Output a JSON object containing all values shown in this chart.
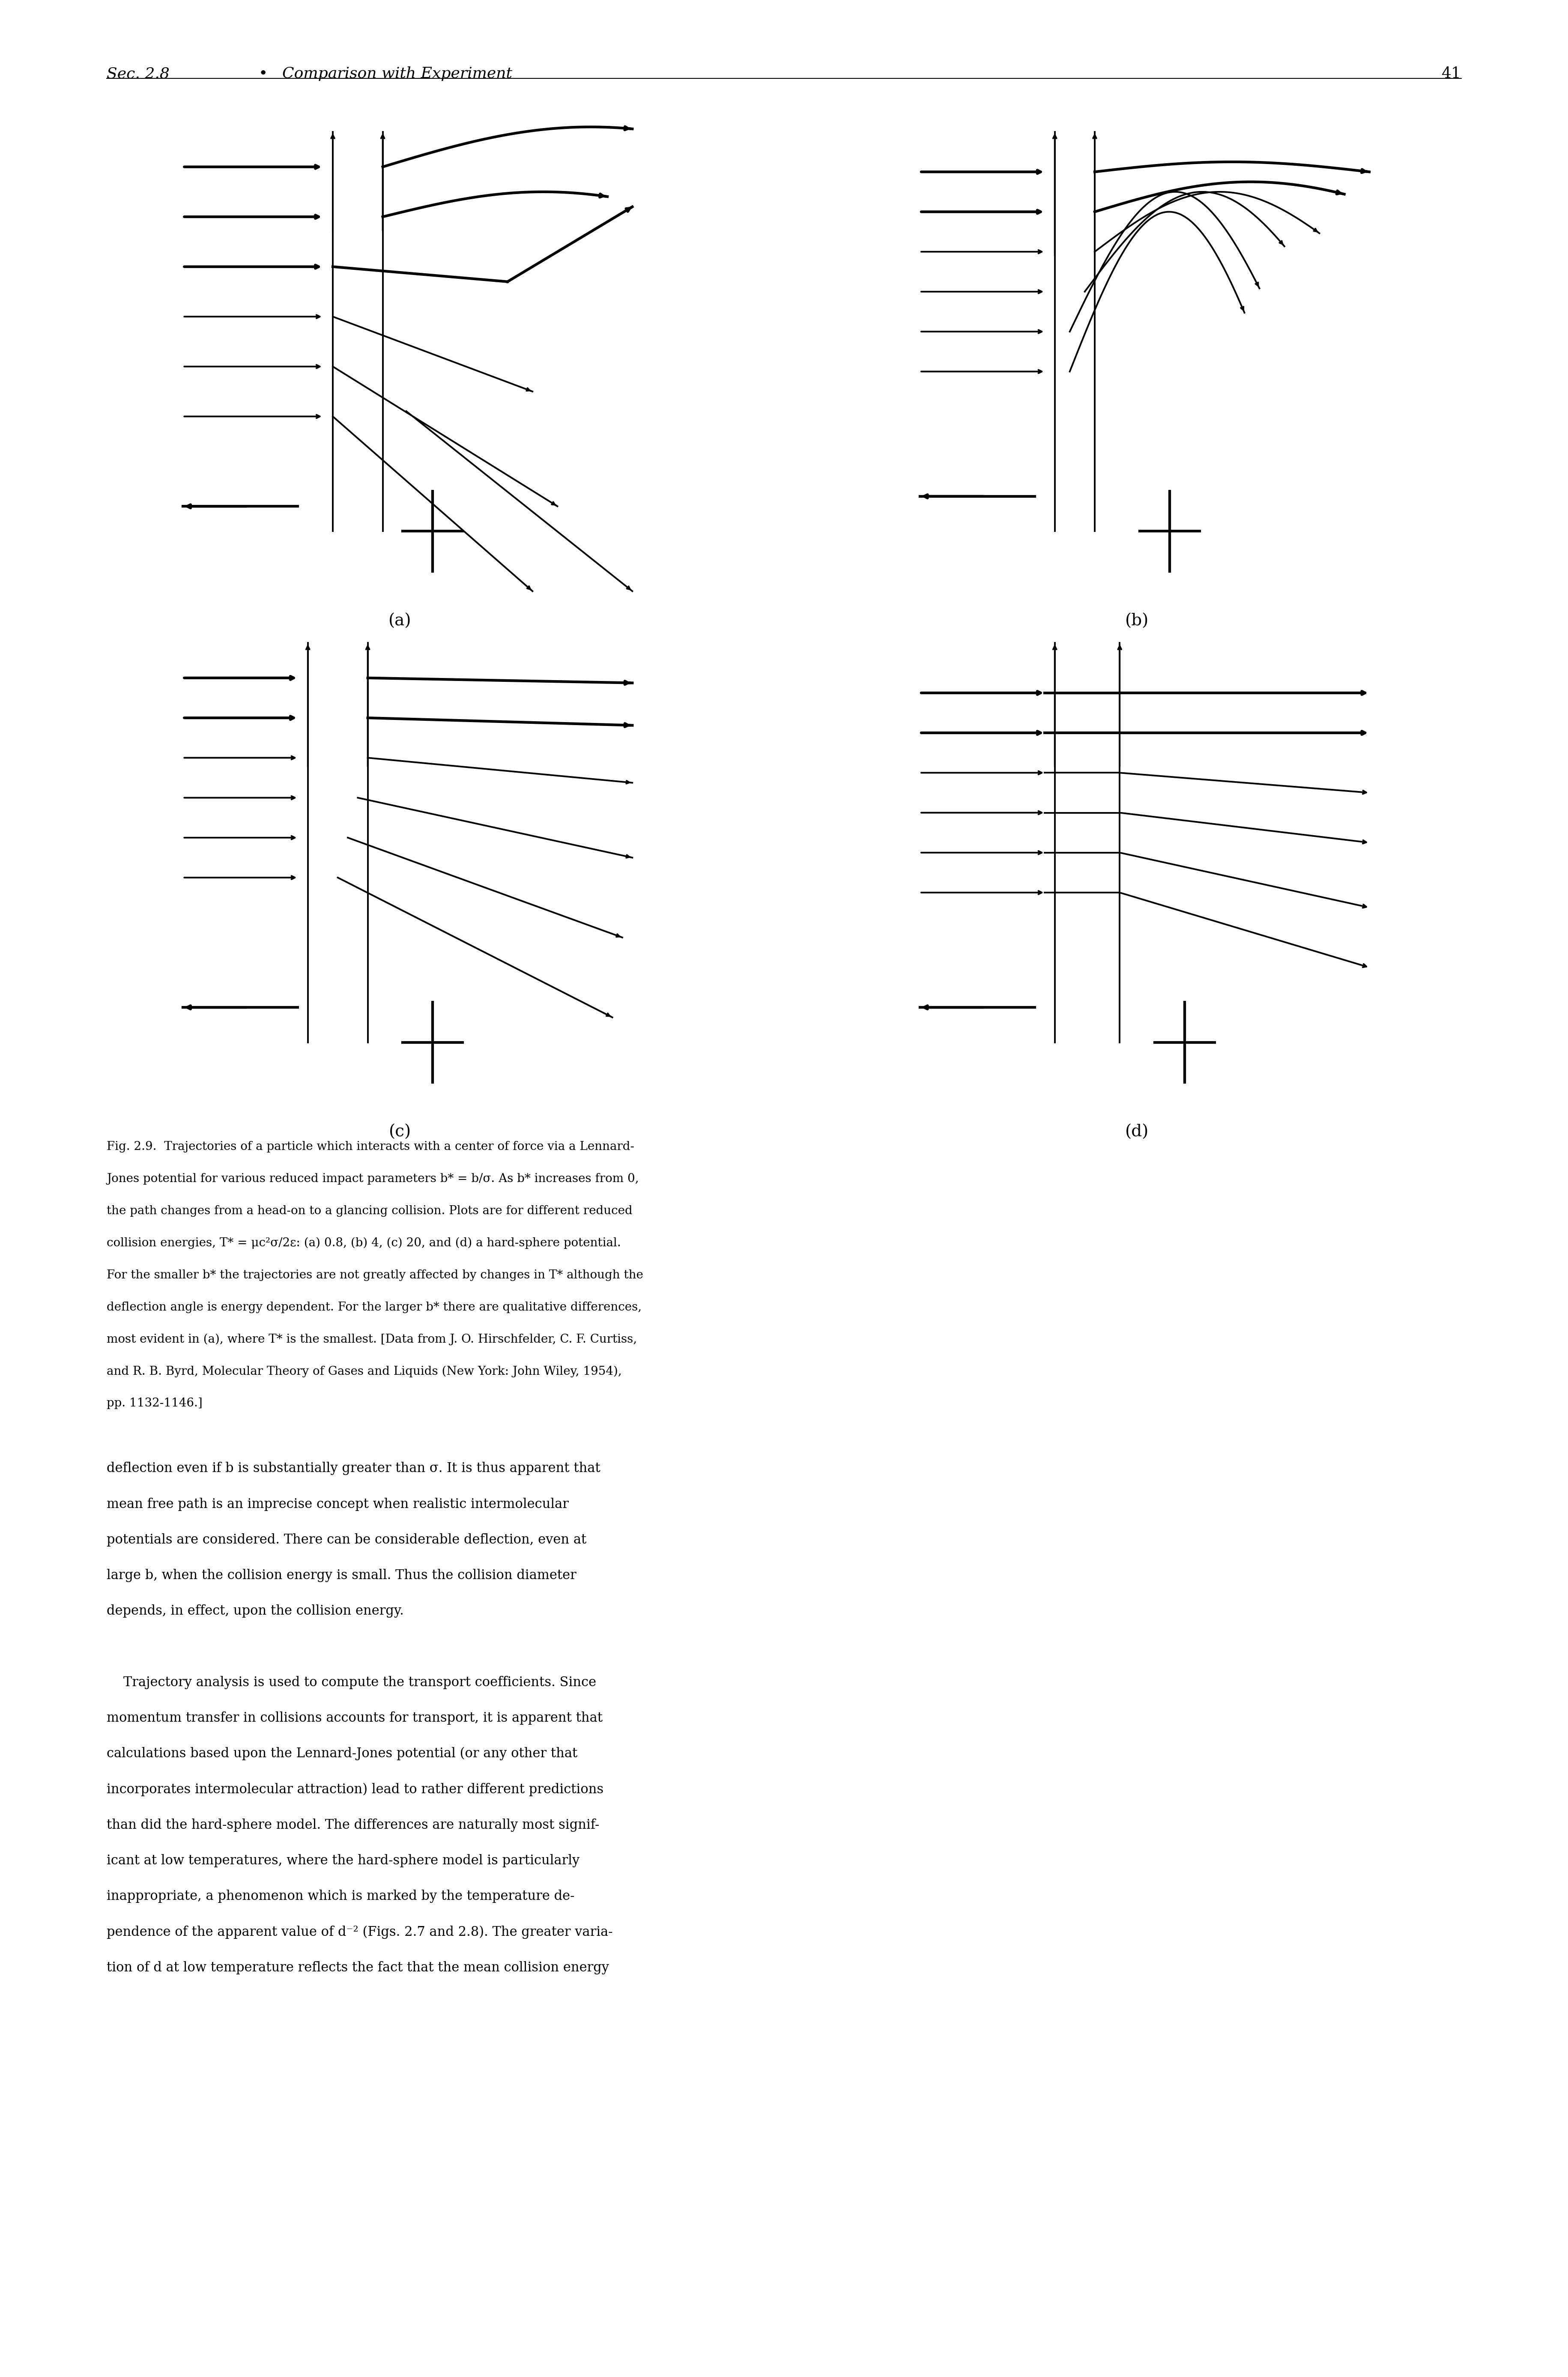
{
  "page_title_left": "Sec. 2.8",
  "page_title_bullet": "•",
  "page_title_right": "Comparison with Experiment",
  "page_number": "41",
  "subplot_labels": [
    "(a)",
    "(b)",
    "(c)",
    "(d)"
  ],
  "background_color": "#ffffff",
  "text_color": "#000000",
  "font_size_header": 26,
  "font_size_caption": 20,
  "font_size_body": 22,
  "fig_caption_lines": [
    "Fig. 2.9.  Trajectories of a particle which interacts with a center of force via a Lennard-",
    "Jones potential for various reduced impact parameters b* = b/σ. As b* increases from 0,",
    "the path changes from a head-on to a glancing collision. Plots are for different reduced",
    "collision energies, T* = μc²σ/2ε: (a) 0.8, (b) 4, (c) 20, and (d) a hard-sphere potential.",
    "For the smaller b* the trajectories are not greatly affected by changes in T* although the",
    "deflection angle is energy dependent. For the larger b* there are qualitative differences,",
    "most evident in (a), where T* is the smallest. [Data from J. O. Hirschfelder, C. F. Curtiss,",
    "and R. B. Byrd, Molecular Theory of Gases and Liquids (New York: John Wiley, 1954),",
    "pp. 1132-1146.]"
  ],
  "body_text_lines": [
    "deflection even if b is substantially greater than σ. It is thus apparent that",
    "mean free path is an imprecise concept when realistic intermolecular",
    "potentials are considered. There can be considerable deflection, even at",
    "large b, when the collision energy is small. Thus the collision diameter",
    "depends, in effect, upon the collision energy.",
    "",
    "    Trajectory analysis is used to compute the transport coefficients. Since",
    "momentum transfer in collisions accounts for transport, it is apparent that",
    "calculations based upon the Lennard-Jones potential (or any other that",
    "incorporates intermolecular attraction) lead to rather different predictions",
    "than did the hard-sphere model. The differences are naturally most signif-",
    "icant at low temperatures, where the hard-sphere model is particularly",
    "inappropriate, a phenomenon which is marked by the temperature de-",
    "pendence of the apparent value of d⁻² (Figs. 2.7 and 2.8). The greater varia-",
    "tion of d at low temperature reflects the fact that the mean collision energy"
  ]
}
